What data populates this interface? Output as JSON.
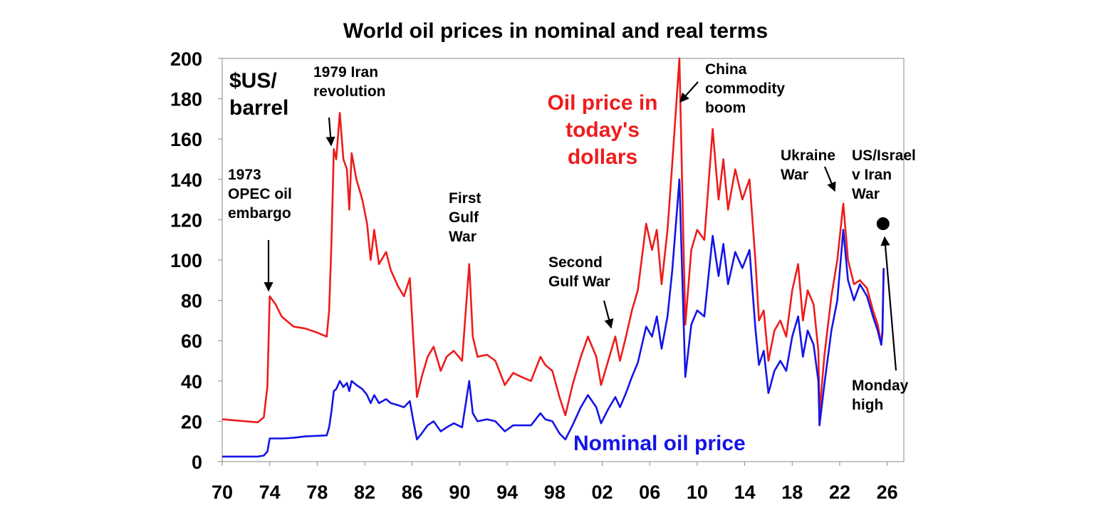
{
  "chart_data": {
    "type": "line",
    "title": "World oil prices in nominal and real terms",
    "y_label": "$US/\nbarrel",
    "xlim": [
      1970,
      2027.4
    ],
    "xticks": [
      {
        "value": 1970,
        "label": "70"
      },
      {
        "value": 1974,
        "label": "74"
      },
      {
        "value": 1978,
        "label": "78"
      },
      {
        "value": 1982,
        "label": "82"
      },
      {
        "value": 1986,
        "label": "86"
      },
      {
        "value": 1990,
        "label": "90"
      },
      {
        "value": 1994,
        "label": "94"
      },
      {
        "value": 1998,
        "label": "98"
      },
      {
        "value": 2002,
        "label": "02"
      },
      {
        "value": 2006,
        "label": "06"
      },
      {
        "value": 2010,
        "label": "10"
      },
      {
        "value": 2014,
        "label": "14"
      },
      {
        "value": 2018,
        "label": "18"
      },
      {
        "value": 2022,
        "label": "22"
      },
      {
        "value": 2026,
        "label": "26"
      }
    ],
    "ylim": [
      0,
      200
    ],
    "yticks": [
      0,
      20,
      40,
      60,
      80,
      100,
      120,
      140,
      160,
      180,
      200
    ],
    "x": [
      1970,
      1972,
      1973,
      1973.5,
      1973.8,
      1974,
      1974.5,
      1975,
      1976,
      1977,
      1978,
      1978.8,
      1979,
      1979.2,
      1979.4,
      1979.6,
      1979.9,
      1980.2,
      1980.5,
      1980.7,
      1980.9,
      1981.3,
      1981.8,
      1982.2,
      1982.5,
      1982.8,
      1983.2,
      1983.8,
      1984.2,
      1984.8,
      1985.3,
      1985.8,
      1986.1,
      1986.4,
      1986.8,
      1987.3,
      1987.8,
      1988.4,
      1988.9,
      1989.5,
      1990.2,
      1990.8,
      1991.1,
      1991.5,
      1992.3,
      1993,
      1993.8,
      1994.5,
      1995.2,
      1996,
      1996.8,
      1997.2,
      1997.8,
      1998.4,
      1998.9,
      1999.5,
      2000.2,
      2000.8,
      2001.5,
      2001.9,
      2002.5,
      2003.1,
      2003.5,
      2004,
      2004.5,
      2005,
      2005.7,
      2006.2,
      2006.6,
      2007,
      2007.5,
      2007.9,
      2008.5,
      2008.8,
      2009,
      2009.5,
      2010,
      2010.6,
      2011.3,
      2011.8,
      2012.2,
      2012.6,
      2013.2,
      2013.8,
      2014.4,
      2014.9,
      2015.2,
      2015.6,
      2016,
      2016.5,
      2017,
      2017.5,
      2018,
      2018.5,
      2018.9,
      2019.3,
      2019.8,
      2020.2,
      2020.3,
      2020.7,
      2021.3,
      2021.8,
      2022.3,
      2022.7,
      2023.2,
      2023.7,
      2024.3,
      2024.8,
      2025.2,
      2025.5,
      2025.6,
      2025.7
    ],
    "series": [
      {
        "name": "Oil price in\ntoday's\ndollars",
        "color": "#ee1c1c",
        "values": [
          21,
          20,
          19.5,
          22,
          37,
          82,
          78,
          72,
          67,
          66,
          64,
          62,
          75,
          109,
          155,
          150,
          173,
          150,
          145,
          125,
          153,
          140,
          130,
          118,
          100,
          115,
          98,
          104,
          95,
          87,
          82,
          91,
          60,
          32,
          42,
          52,
          57,
          45,
          52,
          55,
          50,
          98,
          62,
          52,
          53,
          50,
          38,
          44,
          42,
          40,
          52,
          48,
          45,
          32,
          23,
          38,
          52,
          62,
          52,
          38,
          50,
          62,
          50,
          62,
          75,
          85,
          118,
          105,
          115,
          88,
          115,
          148,
          200,
          120,
          68,
          105,
          115,
          110,
          165,
          130,
          150,
          125,
          145,
          130,
          140,
          100,
          70,
          75,
          50,
          65,
          70,
          62,
          85,
          98,
          70,
          85,
          78,
          55,
          24,
          52,
          82,
          100,
          128,
          100,
          88,
          90,
          86,
          75,
          68,
          58,
          66,
          96
        ]
      },
      {
        "name": "Nominal oil price",
        "color": "#1414e6",
        "values": [
          2.5,
          2.5,
          2.5,
          3,
          5,
          11.5,
          11.5,
          11.5,
          11.8,
          12.5,
          12.8,
          13,
          17,
          25,
          35,
          36,
          40,
          37,
          39,
          35,
          40,
          38,
          36,
          33,
          29,
          33,
          29,
          31,
          29,
          28,
          27,
          30,
          20,
          11,
          14,
          18,
          20,
          15,
          17,
          19,
          17,
          40,
          24,
          20,
          21,
          20,
          15,
          18,
          18,
          18,
          24,
          21,
          20,
          14,
          11,
          18,
          27,
          33,
          27,
          19,
          26,
          32,
          27,
          34,
          42,
          49,
          67,
          62,
          72,
          56,
          72,
          95,
          140,
          80,
          42,
          68,
          75,
          72,
          112,
          92,
          108,
          88,
          104,
          96,
          105,
          66,
          48,
          55,
          34,
          45,
          50,
          45,
          62,
          72,
          52,
          65,
          58,
          40,
          18,
          38,
          65,
          80,
          115,
          90,
          80,
          88,
          82,
          72,
          65,
          58,
          64,
          96
        ]
      }
    ],
    "highlight": {
      "x": 2025.65,
      "y": 118
    },
    "annotations": [
      {
        "text": "1973\nOPEC oil\nembargo"
      },
      {
        "text": "1979 Iran\nrevolution"
      },
      {
        "text": "First\nGulf\nWar"
      },
      {
        "text": "Second\nGulf War"
      },
      {
        "text": "China\ncommodity\nboom"
      },
      {
        "text": "Ukraine\nWar"
      },
      {
        "text": "US/Israel\nv Iran\nWar"
      },
      {
        "text": "Monday\nhigh"
      }
    ]
  }
}
